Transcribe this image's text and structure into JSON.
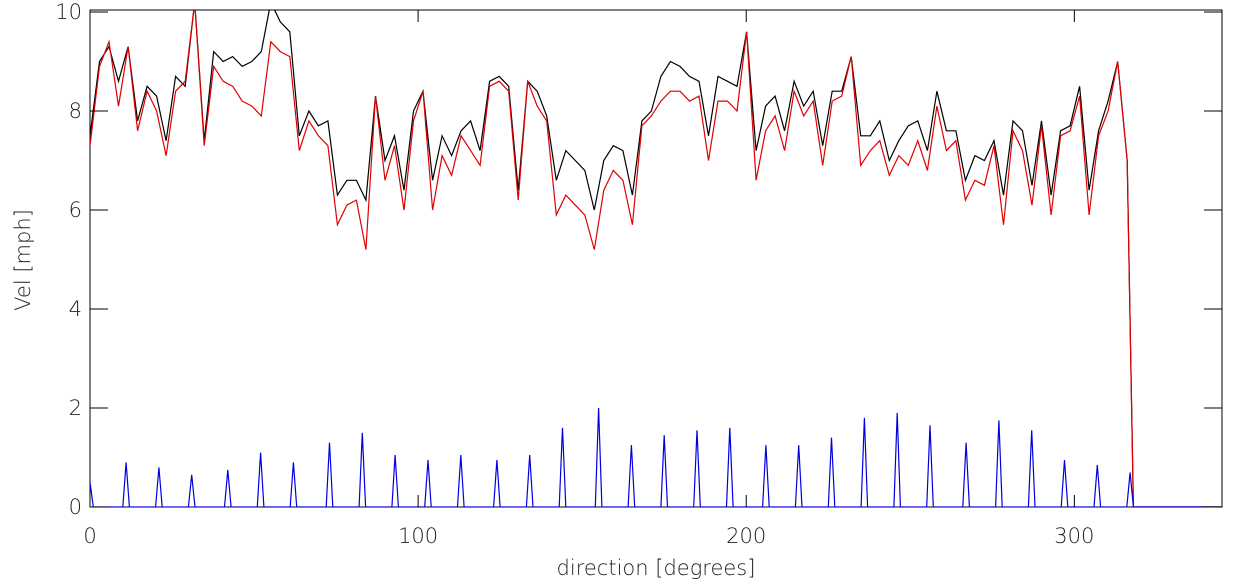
{
  "chart_data": {
    "type": "line",
    "x_label": "direction [degrees]",
    "y_label": "Vel [mph]",
    "xlim": [
      0,
      345
    ],
    "xticks": [
      0,
      100,
      200,
      300
    ],
    "ylim": [
      0,
      10
    ],
    "yticks": [
      0,
      2,
      4,
      6,
      8,
      10
    ],
    "series": [
      {
        "color": "#000000",
        "x": [
          0,
          2.9,
          5.8,
          8.7,
          11.6,
          14.5,
          17.4,
          20.3,
          23.2,
          26.1,
          29,
          31.9,
          34.8,
          37.7,
          40.6,
          43.5,
          46.4,
          49.3,
          52.2,
          55.1,
          58,
          60.9,
          63.8,
          66.7,
          69.6,
          72.5,
          75.4,
          78.3,
          81.2,
          84.1,
          87,
          89.9,
          92.8,
          95.7,
          98.6,
          101.5,
          104.4,
          107.3,
          110.2,
          113.1,
          116,
          118.9,
          121.8,
          124.7,
          127.6,
          130.5,
          133.4,
          136.3,
          139.2,
          142.1,
          145,
          147.9,
          150.8,
          153.7,
          156.6,
          159.5,
          162.4,
          165.3,
          168.2,
          171.1,
          174,
          176.9,
          179.8,
          182.7,
          185.6,
          188.5,
          191.4,
          194.3,
          197.2,
          200.1,
          203,
          205.9,
          208.8,
          211.7,
          214.6,
          217.5,
          220.4,
          223.3,
          226.2,
          229.1,
          232,
          234.9,
          237.8,
          240.7,
          243.6,
          246.5,
          249.4,
          252.3,
          255.2,
          258.1,
          261,
          263.9,
          266.8,
          269.7,
          272.6,
          275.5,
          278.4,
          281.3,
          284.2,
          287.1,
          290,
          292.9,
          295.8,
          298.7,
          301.6,
          304.5,
          307.4,
          310.3,
          313.2,
          316.1,
          318,
          345
        ],
        "values": [
          7.5,
          9.0,
          9.3,
          8.6,
          9.3,
          7.8,
          8.5,
          8.3,
          7.4,
          8.7,
          8.5,
          10.2,
          7.4,
          9.2,
          9.0,
          9.1,
          8.9,
          9.0,
          9.2,
          10.2,
          9.8,
          9.6,
          7.5,
          8.0,
          7.7,
          7.8,
          6.3,
          6.6,
          6.6,
          6.2,
          8.3,
          7.0,
          7.5,
          6.4,
          8.0,
          8.4,
          6.6,
          7.5,
          7.1,
          7.6,
          7.8,
          7.2,
          8.6,
          8.7,
          8.5,
          6.4,
          8.6,
          8.4,
          7.9,
          6.6,
          7.2,
          7.0,
          6.8,
          6.0,
          7.0,
          7.3,
          7.2,
          6.3,
          7.8,
          8.0,
          8.7,
          9.0,
          8.9,
          8.7,
          8.6,
          7.5,
          8.7,
          8.6,
          8.5,
          9.6,
          7.2,
          8.1,
          8.3,
          7.6,
          8.6,
          8.1,
          8.4,
          7.3,
          8.4,
          8.4,
          9.1,
          7.5,
          7.5,
          7.8,
          7.0,
          7.4,
          7.7,
          7.8,
          7.2,
          8.4,
          7.6,
          7.6,
          6.6,
          7.1,
          7.0,
          7.4,
          6.3,
          7.8,
          7.6,
          6.5,
          7.8,
          6.3,
          7.6,
          7.7,
          8.5,
          6.4,
          7.6,
          8.2,
          9.0,
          7.0,
          0,
          0
        ]
      },
      {
        "color": "#e00000",
        "x": [
          0,
          2.9,
          5.8,
          8.7,
          11.6,
          14.5,
          17.4,
          20.3,
          23.2,
          26.1,
          29,
          31.9,
          34.8,
          37.7,
          40.6,
          43.5,
          46.4,
          49.3,
          52.2,
          55.1,
          58,
          60.9,
          63.8,
          66.7,
          69.6,
          72.5,
          75.4,
          78.3,
          81.2,
          84.1,
          87,
          89.9,
          92.8,
          95.7,
          98.6,
          101.5,
          104.4,
          107.3,
          110.2,
          113.1,
          116,
          118.9,
          121.8,
          124.7,
          127.6,
          130.5,
          133.4,
          136.3,
          139.2,
          142.1,
          145,
          147.9,
          150.8,
          153.7,
          156.6,
          159.5,
          162.4,
          165.3,
          168.2,
          171.1,
          174,
          176.9,
          179.8,
          182.7,
          185.6,
          188.5,
          191.4,
          194.3,
          197.2,
          200.1,
          203,
          205.9,
          208.8,
          211.7,
          214.6,
          217.5,
          220.4,
          223.3,
          226.2,
          229.1,
          232,
          234.9,
          237.8,
          240.7,
          243.6,
          246.5,
          249.4,
          252.3,
          255.2,
          258.1,
          261,
          263.9,
          266.8,
          269.7,
          272.6,
          275.5,
          278.4,
          281.3,
          284.2,
          287.1,
          290,
          292.9,
          295.8,
          298.7,
          301.6,
          304.5,
          307.4,
          310.3,
          313.2,
          316.1,
          318,
          345
        ],
        "values": [
          7.3,
          8.9,
          9.4,
          8.1,
          9.3,
          7.6,
          8.4,
          8.0,
          7.1,
          8.4,
          8.6,
          10.2,
          7.3,
          8.9,
          8.6,
          8.5,
          8.2,
          8.1,
          7.9,
          9.4,
          9.2,
          9.1,
          7.2,
          7.8,
          7.5,
          7.3,
          5.7,
          6.1,
          6.2,
          5.2,
          8.3,
          6.6,
          7.3,
          6.0,
          7.8,
          8.4,
          6.0,
          7.1,
          6.7,
          7.5,
          7.2,
          6.9,
          8.5,
          8.6,
          8.4,
          6.2,
          8.6,
          8.1,
          7.8,
          5.9,
          6.3,
          6.1,
          5.9,
          5.2,
          6.4,
          6.8,
          6.6,
          5.7,
          7.7,
          7.9,
          8.2,
          8.4,
          8.4,
          8.2,
          8.3,
          7.0,
          8.2,
          8.2,
          8.0,
          9.6,
          6.6,
          7.6,
          7.9,
          7.2,
          8.4,
          7.9,
          8.2,
          6.9,
          8.2,
          8.3,
          9.1,
          6.9,
          7.2,
          7.4,
          6.7,
          7.1,
          6.9,
          7.4,
          6.8,
          8.1,
          7.2,
          7.4,
          6.2,
          6.6,
          6.5,
          7.3,
          5.7,
          7.6,
          7.2,
          6.1,
          7.7,
          5.9,
          7.5,
          7.6,
          8.3,
          5.9,
          7.5,
          8.0,
          9.0,
          7.0,
          0,
          0
        ]
      },
      {
        "color": "#0000e0",
        "x": [
          0,
          1,
          10,
          11,
          12,
          20,
          21,
          22,
          30,
          31,
          32,
          41,
          42,
          43,
          51,
          52,
          53,
          61,
          62,
          63,
          72,
          73,
          74,
          82,
          83,
          84,
          92,
          93,
          94,
          102,
          103,
          104,
          112,
          113,
          114,
          123,
          124,
          125,
          133,
          134,
          135,
          143,
          144,
          145,
          154,
          155,
          156,
          164,
          165,
          166,
          174,
          175,
          176,
          184,
          185,
          186,
          194,
          195,
          196,
          205,
          206,
          207,
          215,
          216,
          217,
          225,
          226,
          227,
          235,
          236,
          237,
          245,
          246,
          247,
          255,
          256,
          257,
          266,
          267,
          268,
          276,
          277,
          278,
          286,
          287,
          288,
          296,
          297,
          298,
          306,
          307,
          308,
          316,
          317,
          318,
          345
        ],
        "values": [
          0.5,
          0,
          0,
          0.9,
          0,
          0,
          0.8,
          0,
          0,
          0.65,
          0,
          0,
          0.75,
          0,
          0,
          1.1,
          0,
          0,
          0.9,
          0,
          0,
          1.3,
          0,
          0,
          1.5,
          0,
          0,
          1.05,
          0,
          0,
          0.95,
          0,
          0,
          1.05,
          0,
          0,
          0.95,
          0,
          0,
          1.05,
          0,
          0,
          1.6,
          0,
          0,
          2.0,
          0,
          0,
          1.25,
          0,
          0,
          1.45,
          0,
          0,
          1.55,
          0,
          0,
          1.6,
          0,
          0,
          1.25,
          0,
          0,
          1.25,
          0,
          0,
          1.4,
          0,
          0,
          1.8,
          0,
          0,
          1.9,
          0,
          0,
          1.65,
          0,
          0,
          1.3,
          0,
          0,
          1.75,
          0,
          0,
          1.55,
          0,
          0,
          0.95,
          0,
          0,
          0.85,
          0,
          0,
          0.7,
          0,
          0
        ]
      }
    ]
  }
}
